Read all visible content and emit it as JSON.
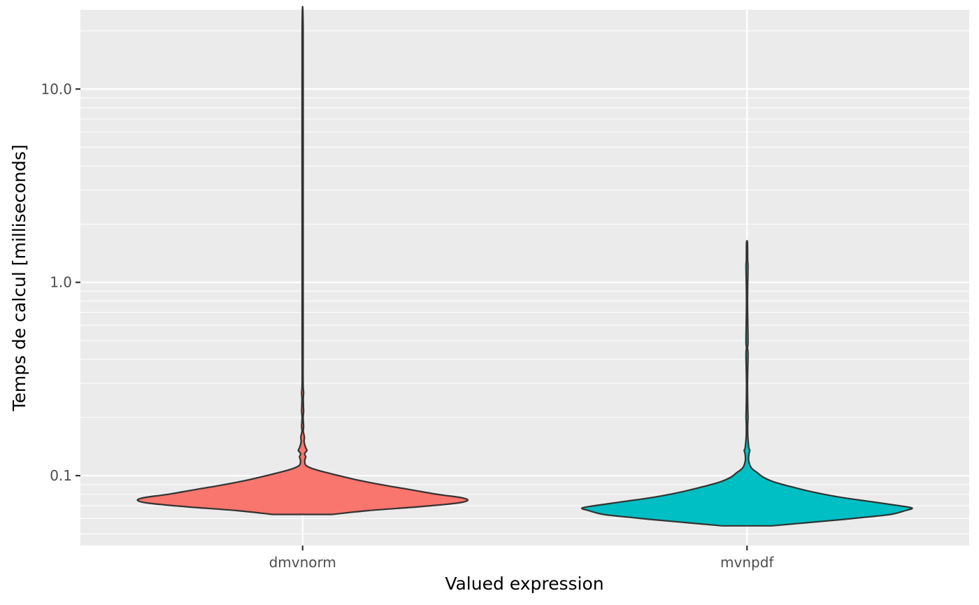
{
  "chart_data": {
    "type": "violin",
    "xlabel": "Valued expression",
    "ylabel": "Temps de calcul [milliseconds]",
    "y_scale": "log10",
    "ylim": [
      0.0435,
      25.7
    ],
    "y_ticks": [
      {
        "value": 0.1,
        "label": "0.1"
      },
      {
        "value": 1.0,
        "label": "1.0"
      },
      {
        "value": 10.0,
        "label": "10.0"
      }
    ],
    "grid": true,
    "legend": "none",
    "categories": [
      "dmvnorm",
      "mvnpdf"
    ],
    "series": [
      {
        "category": "dmvnorm",
        "color": "#F8766D",
        "min": 0.063,
        "max": 20.0,
        "density_profile": [
          [
            0.063,
            0.18
          ],
          [
            0.066,
            0.4
          ],
          [
            0.069,
            0.7
          ],
          [
            0.072,
            0.93
          ],
          [
            0.0745,
            1.0
          ],
          [
            0.077,
            0.96
          ],
          [
            0.08,
            0.82
          ],
          [
            0.085,
            0.64
          ],
          [
            0.09,
            0.47
          ],
          [
            0.095,
            0.33
          ],
          [
            0.1,
            0.22
          ],
          [
            0.104,
            0.14
          ],
          [
            0.108,
            0.07
          ],
          [
            0.113,
            0.02
          ],
          [
            0.12,
            0.013
          ],
          [
            0.125,
            0.019
          ],
          [
            0.13,
            0.012
          ],
          [
            0.135,
            0.026
          ],
          [
            0.14,
            0.018
          ],
          [
            0.15,
            0.009
          ],
          [
            0.158,
            0.011
          ],
          [
            0.17,
            0.004
          ],
          [
            0.18,
            0.006
          ],
          [
            0.2,
            0.003
          ],
          [
            0.215,
            0.006
          ],
          [
            0.23,
            0.005
          ],
          [
            0.25,
            0.004
          ],
          [
            0.27,
            0.006
          ],
          [
            0.3,
            0.003
          ],
          [
            0.5,
            0.003
          ],
          [
            2.0,
            0.003
          ],
          [
            20.0,
            0.003
          ]
        ]
      },
      {
        "category": "mvnpdf",
        "color": "#00BFC4",
        "min": 0.055,
        "max": 1.6,
        "density_profile": [
          [
            0.055,
            0.15
          ],
          [
            0.057,
            0.35
          ],
          [
            0.059,
            0.55
          ],
          [
            0.061,
            0.72
          ],
          [
            0.063,
            0.87
          ],
          [
            0.066,
            0.96
          ],
          [
            0.068,
            1.0
          ],
          [
            0.07,
            0.92
          ],
          [
            0.074,
            0.72
          ],
          [
            0.078,
            0.54
          ],
          [
            0.083,
            0.38
          ],
          [
            0.088,
            0.26
          ],
          [
            0.093,
            0.16
          ],
          [
            0.098,
            0.1
          ],
          [
            0.104,
            0.06
          ],
          [
            0.11,
            0.025
          ],
          [
            0.12,
            0.01
          ],
          [
            0.13,
            0.012
          ],
          [
            0.135,
            0.017
          ],
          [
            0.14,
            0.011
          ],
          [
            0.16,
            0.005
          ],
          [
            0.18,
            0.004
          ],
          [
            0.2,
            0.006
          ],
          [
            0.22,
            0.005
          ],
          [
            0.3,
            0.003
          ],
          [
            0.42,
            0.006
          ],
          [
            0.46,
            0.003
          ],
          [
            0.5,
            0.006
          ],
          [
            0.8,
            0.003
          ],
          [
            1.2,
            0.006
          ],
          [
            1.3,
            0.004
          ],
          [
            1.6,
            0.003
          ]
        ]
      }
    ]
  }
}
